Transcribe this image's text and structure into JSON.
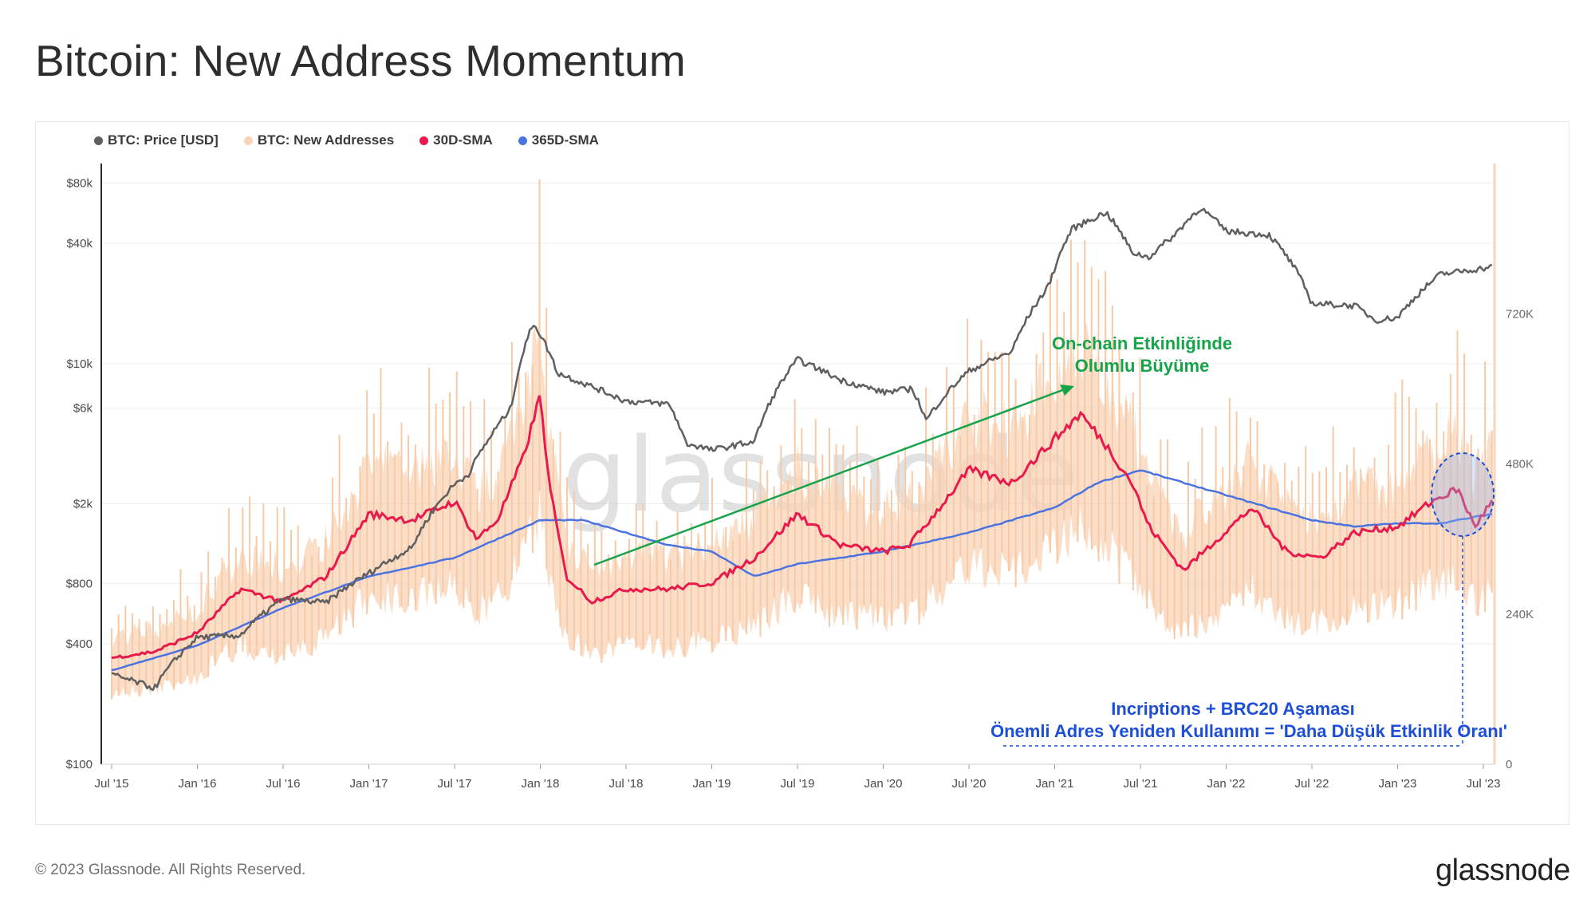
{
  "title": "Bitcoin: New Address Momentum",
  "copyright": "© 2023 Glassnode. All Rights Reserved.",
  "brand": "glassnode",
  "watermark": "glassnode",
  "colors": {
    "price": "#5f5f5f",
    "new_addresses": "#f9d3b6",
    "sma30": "#e8194b",
    "sma365": "#4a72e0",
    "green": "#16a34a",
    "blue": "#1d4ed8"
  },
  "legend": [
    {
      "label": "BTC: Price [USD]",
      "color": "#5f5f5f"
    },
    {
      "label": "BTC: New Addresses",
      "color": "#f9d3b6"
    },
    {
      "label": "30D-SMA",
      "color": "#e8194b"
    },
    {
      "label": "365D-SMA",
      "color": "#4a72e0"
    }
  ],
  "annotations": {
    "green_line1": "On-chain Etkinliğinde",
    "green_line2": "Olumlu Büyüme",
    "blue_line1": "Incriptions + BRC20 Aşaması",
    "blue_line2": "Önemli Adres Yeniden Kullanımı = 'Daha Düşük Etkinlik Oranı'"
  },
  "chart_data": {
    "type": "line",
    "title": "Bitcoin: New Address Momentum",
    "x_ticks": [
      "Jul '15",
      "Jan '16",
      "Jul '16",
      "Jan '17",
      "Jul '17",
      "Jan '18",
      "Jul '18",
      "Jan '19",
      "Jul '19",
      "Jan '20",
      "Jul '20",
      "Jan '21",
      "Jul '21",
      "Jan '22",
      "Jul '22",
      "Jan '23",
      "Jul '23"
    ],
    "y_left": {
      "scale": "log",
      "ticks": [
        100,
        400,
        800,
        2000,
        6000,
        10000,
        40000,
        80000
      ],
      "tick_labels": [
        "$100",
        "$400",
        "$800",
        "$2k",
        "$6k",
        "$10k",
        "$40k",
        "$80k"
      ],
      "range": [
        100,
        100000
      ]
    },
    "y_right": {
      "scale": "linear",
      "ticks": [
        0,
        240000,
        480000,
        720000
      ],
      "tick_labels": [
        "0",
        "240K",
        "480K",
        "720K"
      ],
      "range": [
        0,
        960000
      ]
    },
    "series": [
      {
        "name": "BTC: Price [USD]",
        "axis": "left",
        "x": [
          2015.5,
          2015.75,
          2016.0,
          2016.25,
          2016.5,
          2016.75,
          2017.0,
          2017.25,
          2017.5,
          2017.58,
          2017.7,
          2017.83,
          2017.96,
          2018.0,
          2018.1,
          2018.25,
          2018.5,
          2018.75,
          2018.85,
          2018.96,
          2019.0,
          2019.25,
          2019.5,
          2019.75,
          2020.0,
          2020.17,
          2020.25,
          2020.5,
          2020.75,
          2020.96,
          2021.0,
          2021.1,
          2021.3,
          2021.45,
          2021.55,
          2021.7,
          2021.85,
          2022.0,
          2022.25,
          2022.4,
          2022.5,
          2022.75,
          2022.87,
          2023.0,
          2023.25,
          2023.5,
          2023.55
        ],
        "y": [
          280,
          240,
          430,
          440,
          670,
          640,
          900,
          1200,
          2500,
          2800,
          4200,
          6000,
          16000,
          14000,
          9000,
          8000,
          6500,
          6300,
          4000,
          3800,
          3700,
          4100,
          10500,
          8300,
          7200,
          7500,
          5200,
          9200,
          11500,
          24000,
          30000,
          47000,
          57000,
          36000,
          34000,
          44000,
          60000,
          46000,
          44000,
          30000,
          20000,
          19500,
          16500,
          17000,
          28000,
          30000,
          30500
        ]
      },
      {
        "name": "BTC: New Addresses",
        "axis": "right",
        "values_range": [
          150000,
          680000
        ]
      },
      {
        "name": "30D-SMA",
        "axis": "right",
        "x": [
          2015.5,
          2015.75,
          2016.0,
          2016.25,
          2016.5,
          2016.75,
          2017.0,
          2017.25,
          2017.5,
          2017.63,
          2017.75,
          2017.9,
          2018.0,
          2018.05,
          2018.15,
          2018.3,
          2018.5,
          2018.75,
          2019.0,
          2019.25,
          2019.5,
          2019.75,
          2020.0,
          2020.15,
          2020.3,
          2020.5,
          2020.75,
          2021.0,
          2021.15,
          2021.3,
          2021.45,
          2021.55,
          2021.75,
          2021.95,
          2022.15,
          2022.35,
          2022.55,
          2022.75,
          2023.0,
          2023.2,
          2023.35,
          2023.45,
          2023.55
        ],
        "y": [
          170000,
          180000,
          210000,
          280000,
          260000,
          300000,
          400000,
          390000,
          420000,
          360000,
          390000,
          490000,
          590000,
          450000,
          300000,
          260000,
          280000,
          280000,
          290000,
          330000,
          400000,
          350000,
          340000,
          350000,
          400000,
          470000,
          450000,
          520000,
          560000,
          510000,
          450000,
          380000,
          310000,
          360000,
          410000,
          340000,
          330000,
          370000,
          380000,
          420000,
          440000,
          380000,
          420000
        ]
      },
      {
        "name": "365D-SMA",
        "axis": "right",
        "x": [
          2015.5,
          2016.0,
          2016.5,
          2017.0,
          2017.5,
          2018.0,
          2018.25,
          2018.5,
          2018.75,
          2019.0,
          2019.25,
          2019.5,
          2020.0,
          2020.5,
          2021.0,
          2021.25,
          2021.5,
          2021.75,
          2022.0,
          2022.25,
          2022.5,
          2022.75,
          2023.0,
          2023.25,
          2023.55
        ],
        "y": [
          150000,
          190000,
          250000,
          300000,
          330000,
          390000,
          390000,
          370000,
          350000,
          340000,
          300000,
          320000,
          340000,
          370000,
          410000,
          450000,
          470000,
          450000,
          430000,
          410000,
          390000,
          380000,
          385000,
          385000,
          400000
        ]
      }
    ]
  }
}
